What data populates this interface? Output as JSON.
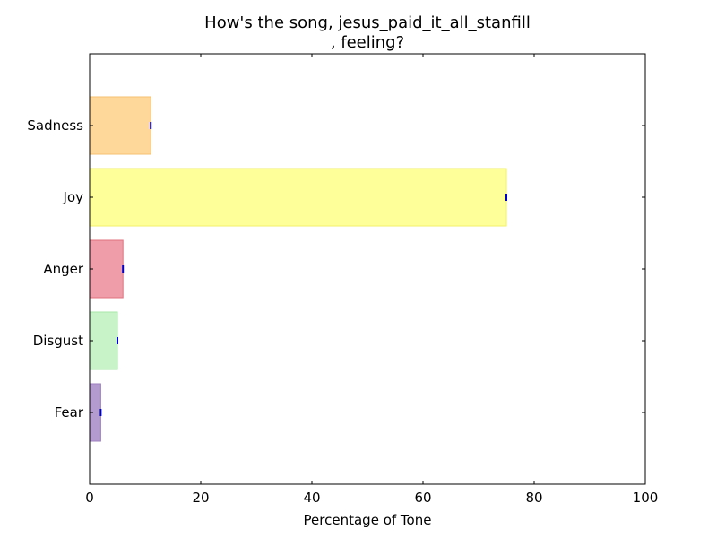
{
  "chart_data": {
    "type": "bar",
    "orientation": "horizontal",
    "title_lines": [
      "How's the song, jesus_paid_it_all_stanfill",
      ", feeling?"
    ],
    "xlabel": "Percentage of Tone",
    "ylabel": "",
    "xlim": [
      0,
      100
    ],
    "x_ticks": [
      0,
      20,
      40,
      60,
      80,
      100
    ],
    "categories": [
      "Fear",
      "Disgust",
      "Anger",
      "Joy",
      "Sadness"
    ],
    "values": [
      2,
      5,
      6,
      75,
      11
    ],
    "colors": [
      "#b39bd0",
      "#c8f2c8",
      "#ef9ea9",
      "#ffff99",
      "#fed89a"
    ],
    "edge_colors": [
      "#9c7fbf",
      "#a8e6a8",
      "#e0707f",
      "#f2f26a",
      "#f5c070"
    ],
    "error_marker_color": "#0000cc",
    "grid": false,
    "legend": "none"
  }
}
